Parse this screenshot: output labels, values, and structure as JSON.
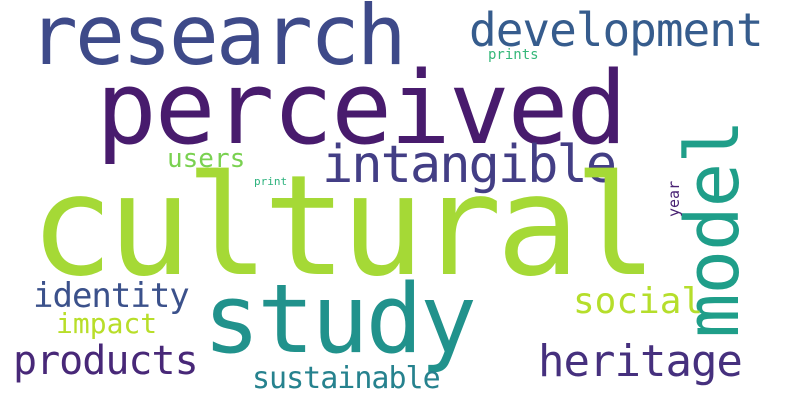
{
  "background": "#ffffff",
  "words": {
    "cultural": {
      "text": "cultural",
      "color": "#a5d936"
    },
    "perceived": {
      "text": "perceived",
      "color": "#481b6d"
    },
    "research": {
      "text": "research",
      "color": "#3e4a89"
    },
    "study": {
      "text": "study",
      "color": "#21928c"
    },
    "model": {
      "text": "model",
      "color": "#1f9e89"
    },
    "intangible": {
      "text": "intangible",
      "color": "#433e85"
    },
    "development": {
      "text": "development",
      "color": "#365c8d"
    },
    "heritage": {
      "text": "heritage",
      "color": "#46307e"
    },
    "products": {
      "text": "products",
      "color": "#482878"
    },
    "identity": {
      "text": "identity",
      "color": "#3b518b"
    },
    "social": {
      "text": "social",
      "color": "#b5de2b"
    },
    "sustainable": {
      "text": "sustainable",
      "color": "#26828e"
    },
    "impact": {
      "text": "impact",
      "color": "#b8de29"
    },
    "users": {
      "text": "users",
      "color": "#7ad151"
    },
    "year": {
      "text": "year",
      "color": "#482173"
    },
    "prints": {
      "text": "prints",
      "color": "#35b779"
    },
    "print": {
      "text": "print",
      "color": "#2db27d"
    }
  }
}
